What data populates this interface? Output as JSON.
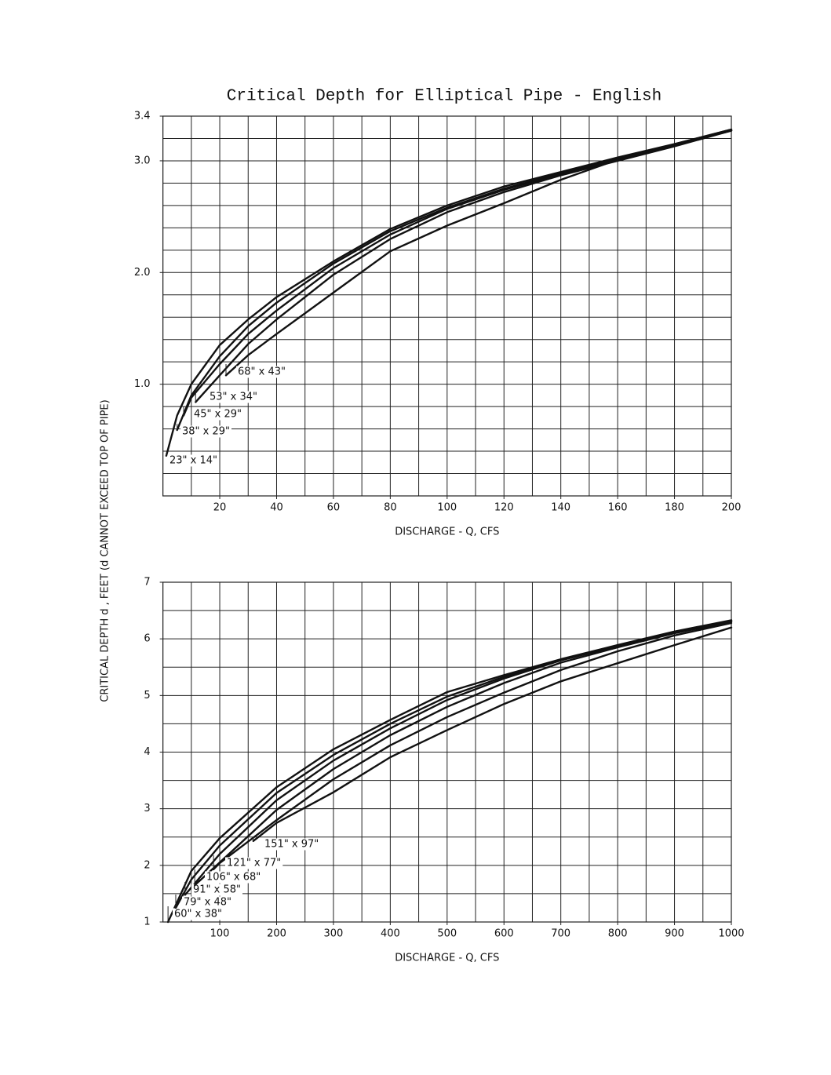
{
  "title": "Critical Depth for Elliptical Pipe - English",
  "y_label": "CRITICAL DEPTH d  , FEET (d  CANNOT EXCEED TOP OF PIPE)",
  "chart_data": [
    {
      "type": "line",
      "x_label": "DISCHARGE - Q, CFS",
      "xlim": [
        0,
        200
      ],
      "xticks": [
        20,
        40,
        60,
        80,
        100,
        120,
        140,
        160,
        180,
        200
      ],
      "ylim": [
        0,
        3.4
      ],
      "yticks": [
        {
          "value": 1,
          "label": "1.0"
        },
        {
          "value": 2,
          "label": "2.0"
        },
        {
          "value": 3,
          "label": "3.0"
        },
        {
          "value": 3.4,
          "label": "3.4"
        }
      ],
      "xgrid": [
        0,
        10,
        20,
        30,
        40,
        50,
        60,
        70,
        80,
        90,
        100,
        110,
        120,
        130,
        140,
        150,
        160,
        170,
        180,
        190,
        200
      ],
      "ygrid": [
        0,
        0.2,
        0.4,
        0.6,
        0.8,
        1,
        1.2,
        1.4,
        1.6,
        1.8,
        2,
        2.2,
        2.4,
        2.6,
        2.8,
        3,
        3.2,
        3.4
      ],
      "series": [
        {
          "name": "23\" x 14\"",
          "color": "#111111",
          "x": [
            1.2,
            5,
            10,
            20,
            30,
            40,
            60,
            80,
            100,
            120,
            140,
            160,
            180,
            200
          ],
          "values": [
            0.36,
            0.72,
            1.0,
            1.35,
            1.58,
            1.78,
            2.1,
            2.39,
            2.6,
            2.77,
            2.9,
            3.03,
            3.15,
            3.28
          ]
        },
        {
          "name": "38\" x 29\"",
          "color": "#111111",
          "x": [
            5,
            10,
            20,
            30,
            40,
            60,
            80,
            100,
            120,
            140,
            160,
            180,
            200
          ],
          "values": [
            0.59,
            0.9,
            1.25,
            1.52,
            1.73,
            2.08,
            2.37,
            2.58,
            2.75,
            2.89,
            3.02,
            3.14,
            3.27
          ]
        },
        {
          "name": "45\" x 29\"",
          "color": "#111111",
          "x": [
            7.3,
            10,
            20,
            30,
            40,
            60,
            80,
            100,
            120,
            140,
            160,
            180,
            200
          ],
          "values": [
            0.72,
            0.88,
            1.18,
            1.45,
            1.66,
            2.04,
            2.34,
            2.57,
            2.74,
            2.88,
            3.01,
            3.14,
            3.27
          ]
        },
        {
          "name": "53\" x 34\"",
          "color": "#111111",
          "x": [
            11.5,
            20,
            30,
            40,
            60,
            80,
            100,
            120,
            140,
            160,
            180,
            200
          ],
          "values": [
            0.84,
            1.08,
            1.36,
            1.58,
            1.98,
            2.3,
            2.54,
            2.72,
            2.87,
            3.0,
            3.13,
            3.27
          ]
        },
        {
          "name": "68\" x 43\"",
          "color": "#111111",
          "x": [
            22.2,
            30,
            40,
            60,
            80,
            100,
            120,
            140,
            160,
            180,
            200
          ],
          "values": [
            1.08,
            1.26,
            1.45,
            1.82,
            2.19,
            2.42,
            2.62,
            2.83,
            3.01,
            3.15,
            3.28
          ]
        }
      ]
    },
    {
      "type": "line",
      "x_label": "DISCHARGE - Q, CFS",
      "xlim": [
        0,
        1000
      ],
      "xticks": [
        100,
        200,
        300,
        400,
        500,
        600,
        700,
        800,
        900,
        1000
      ],
      "ylim": [
        1,
        7
      ],
      "yticks": [
        1,
        2,
        3,
        4,
        5,
        6,
        7
      ],
      "xgrid": [
        0,
        50,
        100,
        150,
        200,
        250,
        300,
        350,
        400,
        450,
        500,
        550,
        600,
        650,
        700,
        750,
        800,
        850,
        900,
        950,
        1000
      ],
      "ygrid": [
        1,
        1.5,
        2,
        2.5,
        3,
        3.5,
        4,
        4.5,
        5,
        5.5,
        6,
        6.5,
        7
      ],
      "series": [
        {
          "name": "60\" x 38\"",
          "color": "#111111",
          "x": [
            9,
            50,
            100,
            200,
            300,
            400,
            500,
            600,
            700,
            800,
            900,
            1000
          ],
          "values": [
            1.0,
            1.9,
            2.48,
            3.38,
            4.05,
            4.57,
            5.06,
            5.36,
            5.64,
            5.89,
            6.13,
            6.33
          ]
        },
        {
          "name": "79\" x 48\"",
          "color": "#111111",
          "x": [
            22.6,
            50,
            100,
            200,
            300,
            400,
            500,
            600,
            700,
            800,
            900,
            1000
          ],
          "values": [
            1.25,
            1.75,
            2.35,
            3.28,
            3.95,
            4.5,
            4.98,
            5.33,
            5.63,
            5.88,
            6.12,
            6.32
          ]
        },
        {
          "name": "91\" x 58\"",
          "color": "#111111",
          "x": [
            39,
            100,
            200,
            300,
            400,
            500,
            600,
            700,
            800,
            900,
            1000
          ],
          "values": [
            1.48,
            2.2,
            3.15,
            3.85,
            4.42,
            4.92,
            5.3,
            5.62,
            5.87,
            6.11,
            6.31
          ]
        },
        {
          "name": "106\" x 68\"",
          "color": "#111111",
          "x": [
            56,
            100,
            200,
            300,
            400,
            500,
            600,
            700,
            800,
            900,
            1000
          ],
          "values": [
            1.65,
            2.05,
            2.98,
            3.7,
            4.3,
            4.8,
            5.22,
            5.58,
            5.85,
            6.1,
            6.3
          ]
        },
        {
          "name": "121\" x 77\"",
          "color": "#111111",
          "x": [
            89,
            100,
            200,
            300,
            400,
            500,
            600,
            700,
            800,
            900,
            1000
          ],
          "values": [
            1.93,
            2.04,
            2.8,
            3.52,
            4.12,
            4.62,
            5.05,
            5.45,
            5.78,
            6.06,
            6.28
          ]
        },
        {
          "name": "151\" x 97\"",
          "color": "#111111",
          "x": [
            159,
            200,
            300,
            400,
            500,
            600,
            700,
            800,
            900,
            1000
          ],
          "values": [
            2.43,
            2.75,
            3.29,
            3.91,
            4.39,
            4.85,
            5.25,
            5.57,
            5.89,
            6.2
          ]
        }
      ]
    }
  ]
}
